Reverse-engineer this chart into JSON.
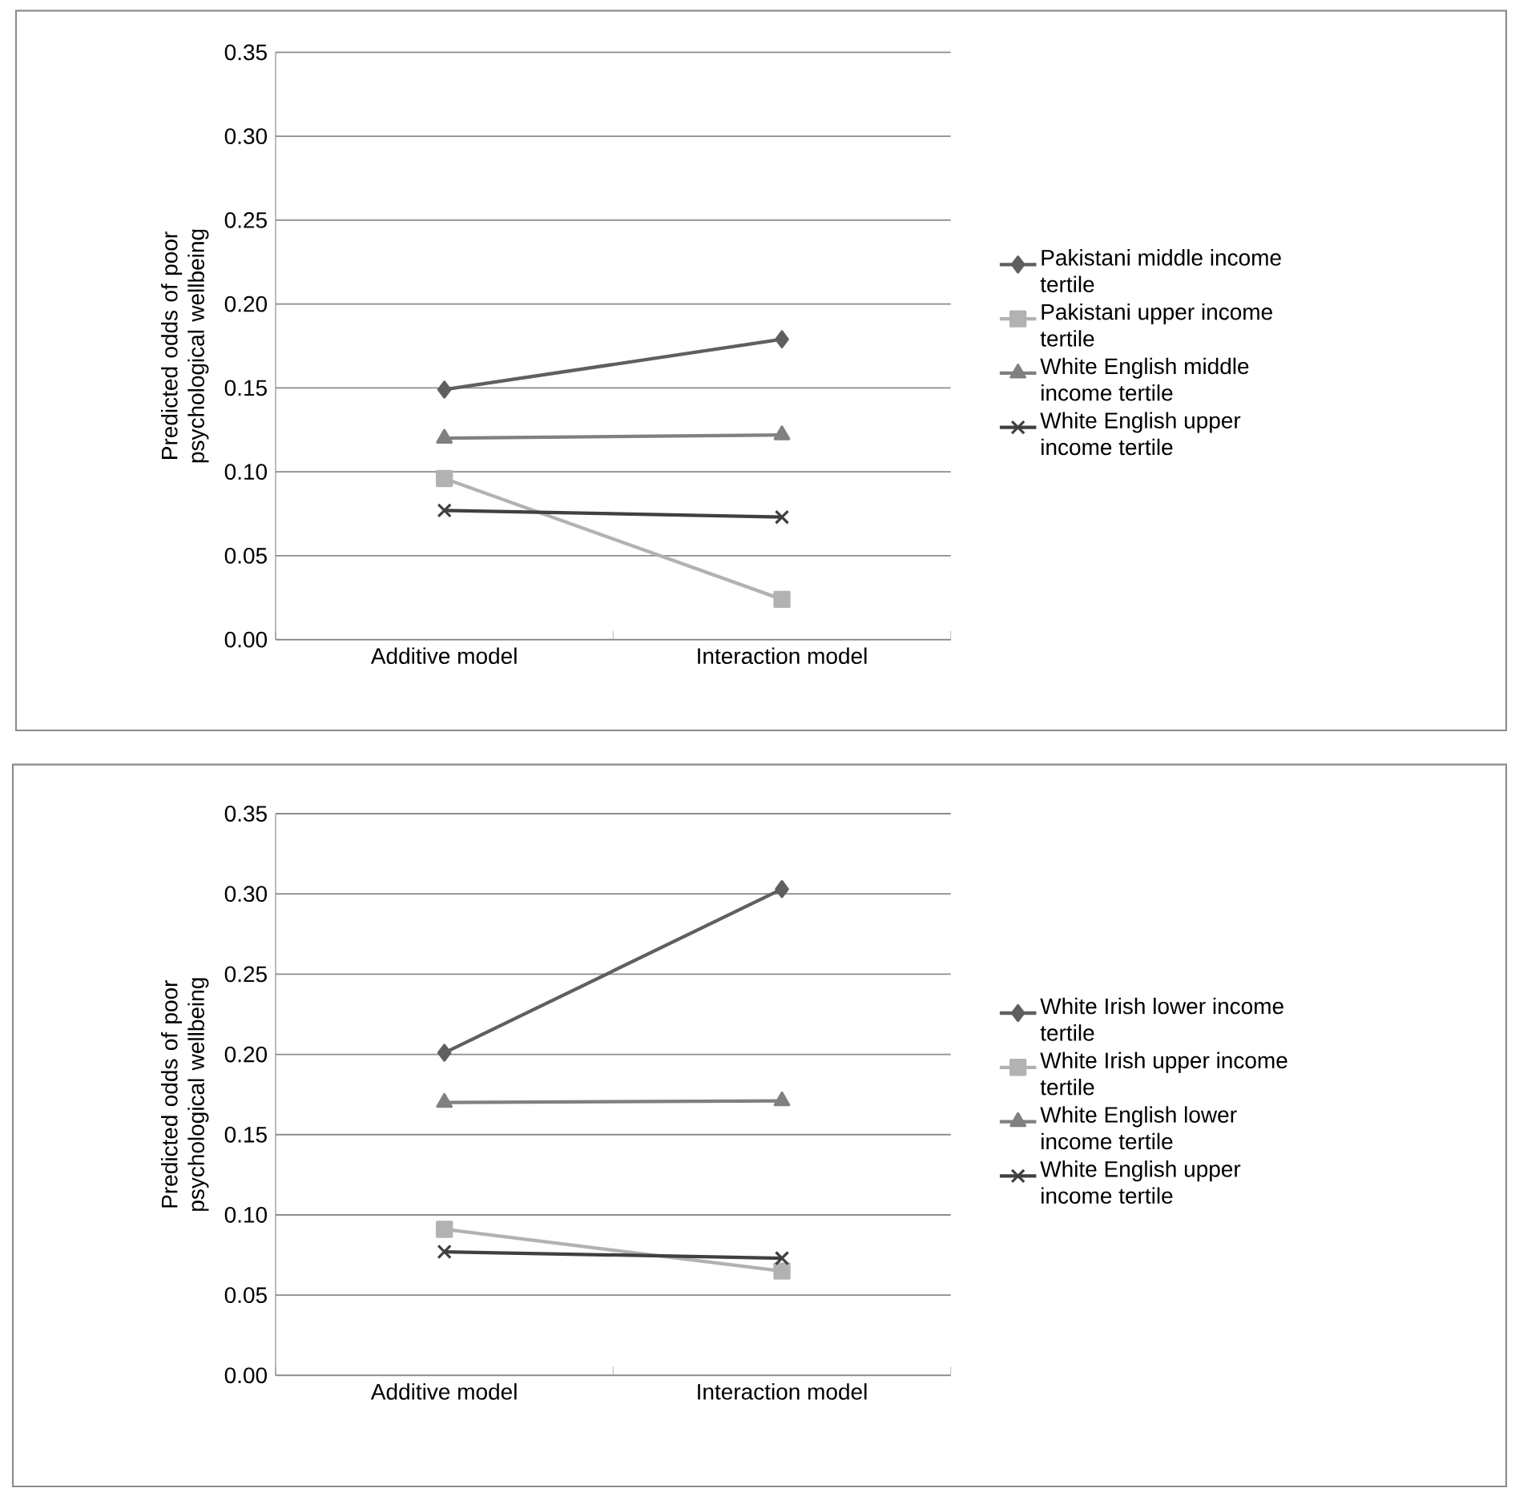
{
  "chart_data": [
    {
      "type": "line",
      "categories": [
        "Additive model",
        "Interaction model"
      ],
      "ylabel": "Predicted odds of poor psychological wellbeing",
      "ylim": [
        0,
        0.35
      ],
      "yticks": [
        {
          "value": 0,
          "label": "0.00"
        },
        {
          "value": 0.05,
          "label": "0.05"
        },
        {
          "value": 0.1,
          "label": "0.10"
        },
        {
          "value": 0.15,
          "label": "0.15"
        },
        {
          "value": 0.2,
          "label": "0.20"
        },
        {
          "value": 0.25,
          "label": "0.25"
        },
        {
          "value": 0.3,
          "label": "0.30"
        },
        {
          "value": 0.35,
          "label": "0.35"
        }
      ],
      "grid": "y",
      "legend": "right",
      "series": [
        {
          "name": "Pakistani middle income tertile",
          "color": "#5f5f5f",
          "marker": "diamond",
          "values": [
            0.149,
            0.179
          ]
        },
        {
          "name": "Pakistani upper income tertile",
          "color": "#b2b2b2",
          "marker": "square",
          "values": [
            0.096,
            0.024
          ]
        },
        {
          "name": "White English middle income tertile",
          "color": "#808080",
          "marker": "triangle",
          "values": [
            0.12,
            0.122
          ]
        },
        {
          "name": "White English upper income tertile",
          "color": "#404040",
          "marker": "cross",
          "values": [
            0.077,
            0.073
          ]
        }
      ]
    },
    {
      "type": "line",
      "categories": [
        "Additive model",
        "Interaction model"
      ],
      "ylabel": "Predicted odds of poor psychological wellbeing",
      "ylim": [
        0,
        0.35
      ],
      "yticks": [
        {
          "value": 0,
          "label": "0.00"
        },
        {
          "value": 0.05,
          "label": "0.05"
        },
        {
          "value": 0.1,
          "label": "0.10"
        },
        {
          "value": 0.15,
          "label": "0.15"
        },
        {
          "value": 0.2,
          "label": "0.20"
        },
        {
          "value": 0.25,
          "label": "0.25"
        },
        {
          "value": 0.3,
          "label": "0.30"
        },
        {
          "value": 0.35,
          "label": "0.35"
        }
      ],
      "grid": "y",
      "legend": "right",
      "series": [
        {
          "name": "White Irish lower income tertile",
          "color": "#5f5f5f",
          "marker": "diamond",
          "values": [
            0.201,
            0.303
          ]
        },
        {
          "name": "White Irish upper income tertile",
          "color": "#b2b2b2",
          "marker": "square",
          "values": [
            0.091,
            0.065
          ]
        },
        {
          "name": "White English lower income tertile",
          "color": "#808080",
          "marker": "triangle",
          "values": [
            0.17,
            0.171
          ]
        },
        {
          "name": "White English upper income tertile",
          "color": "#404040",
          "marker": "cross",
          "values": [
            0.077,
            0.073
          ]
        }
      ]
    }
  ]
}
